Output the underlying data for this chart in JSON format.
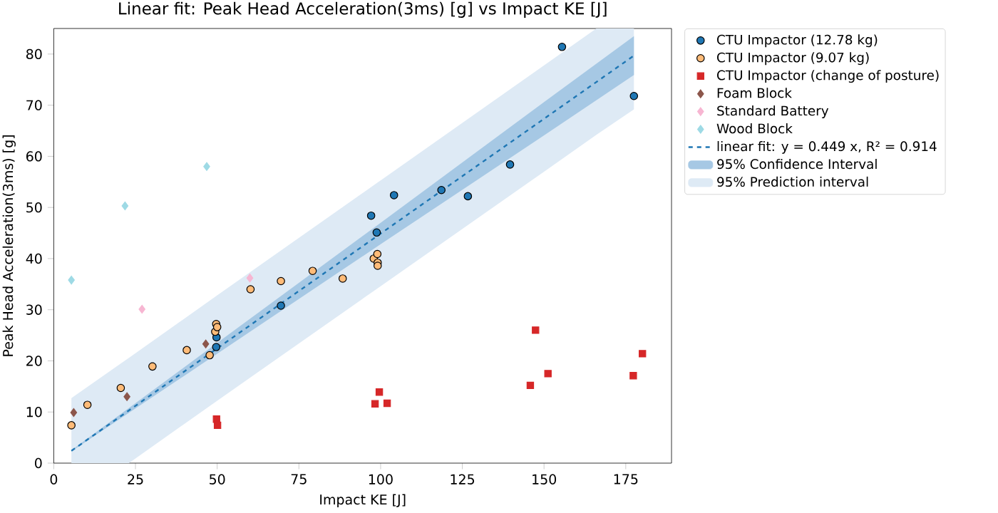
{
  "chart_data": {
    "type": "scatter",
    "title": "Linear fit: Peak Head Acceleration(3ms)  [g] vs Impact KE [J]",
    "xlabel": "Impact KE [J]",
    "ylabel": "Peak Head Acceleration(3ms)  [g]",
    "xlim": [
      0,
      189
    ],
    "ylim": [
      0,
      85
    ],
    "xticks": [
      0,
      25,
      50,
      75,
      100,
      125,
      150,
      175
    ],
    "yticks": [
      0,
      10,
      20,
      30,
      40,
      50,
      60,
      70,
      80
    ],
    "legend": "right",
    "series": [
      {
        "name": "CTU Impactor (12.78 kg)",
        "type": "scatter",
        "marker": "circle",
        "color": "#1f77b4",
        "x": [
          49.8,
          49.7,
          69.5,
          97.1,
          98.8,
          104.1,
          118.6,
          126.7,
          139.6,
          155.5,
          177.5
        ],
        "values": [
          24.6,
          22.7,
          30.8,
          48.4,
          45.1,
          52.4,
          53.4,
          52.2,
          58.4,
          81.4,
          71.8
        ]
      },
      {
        "name": "CTU Impactor (9.07 kg)",
        "type": "scatter",
        "marker": "circle",
        "color": "#ffbb78",
        "x": [
          5.4,
          10.3,
          20.5,
          30.2,
          40.7,
          47.7,
          49.4,
          49.7,
          50.0,
          60.2,
          69.5,
          79.2,
          88.4,
          97.9,
          99.0,
          99.1,
          99.1
        ],
        "values": [
          7.4,
          11.4,
          14.7,
          18.9,
          22.1,
          21.1,
          25.7,
          27.2,
          26.6,
          34.0,
          35.6,
          37.6,
          36.1,
          40.0,
          40.9,
          39.2,
          38.6
        ]
      },
      {
        "name": "CTU Impactor (change of posture)",
        "type": "scatter",
        "marker": "square",
        "color": "#d62728",
        "x": [
          49.8,
          50.1,
          98.3,
          99.6,
          102.0,
          147.4,
          145.8,
          151.2,
          177.3,
          180.1
        ],
        "values": [
          8.6,
          7.4,
          11.6,
          13.9,
          11.7,
          26.0,
          15.2,
          17.5,
          17.1,
          21.4
        ]
      },
      {
        "name": "Foam Block",
        "type": "scatter",
        "marker": "diamond",
        "color": "#8c564b",
        "x": [
          6.1,
          22.4,
          46.5
        ],
        "values": [
          9.9,
          13.0,
          23.3
        ]
      },
      {
        "name": "Standard Battery",
        "type": "scatter",
        "marker": "diamond",
        "color": "#f7b6d2",
        "x": [
          27.0,
          60.0
        ],
        "values": [
          30.1,
          36.2
        ]
      },
      {
        "name": "Wood Block",
        "type": "scatter",
        "marker": "diamond",
        "color": "#9edae5",
        "x": [
          5.4,
          21.8,
          46.8
        ],
        "values": [
          35.8,
          50.3,
          58.0
        ]
      },
      {
        "name": "linear fit: y = 0.449 x, R² = 0.914",
        "type": "line",
        "line_style": "dashed",
        "color": "#1f77b4",
        "x": [
          5.4,
          177.5
        ],
        "values": [
          2.4,
          79.7
        ]
      },
      {
        "name": "95% Confidence Interval",
        "type": "line",
        "color": "#a6c8e4",
        "x": [
          5.4,
          50,
          100,
          150,
          177.5
        ],
        "values": [
          null,
          null,
          null,
          null,
          null
        ],
        "lower": [
          2.3,
          21.4,
          42.8,
          64.1,
          75.9
        ],
        "upper": [
          2.5,
          23.5,
          47.0,
          70.6,
          83.5
        ]
      },
      {
        "name": "95% Prediction interval",
        "type": "line",
        "color": "#deeaf5",
        "x": [
          5.4,
          23,
          50,
          100,
          150,
          166,
          177.5
        ],
        "values": [
          null,
          null,
          null,
          null,
          null,
          null,
          null
        ],
        "lower": [
          0,
          0,
          12.2,
          34.6,
          57.0,
          64.2,
          69.2
        ],
        "upper": [
          12.7,
          20.6,
          32.8,
          55.3,
          77.8,
          85,
          85
        ]
      }
    ]
  }
}
